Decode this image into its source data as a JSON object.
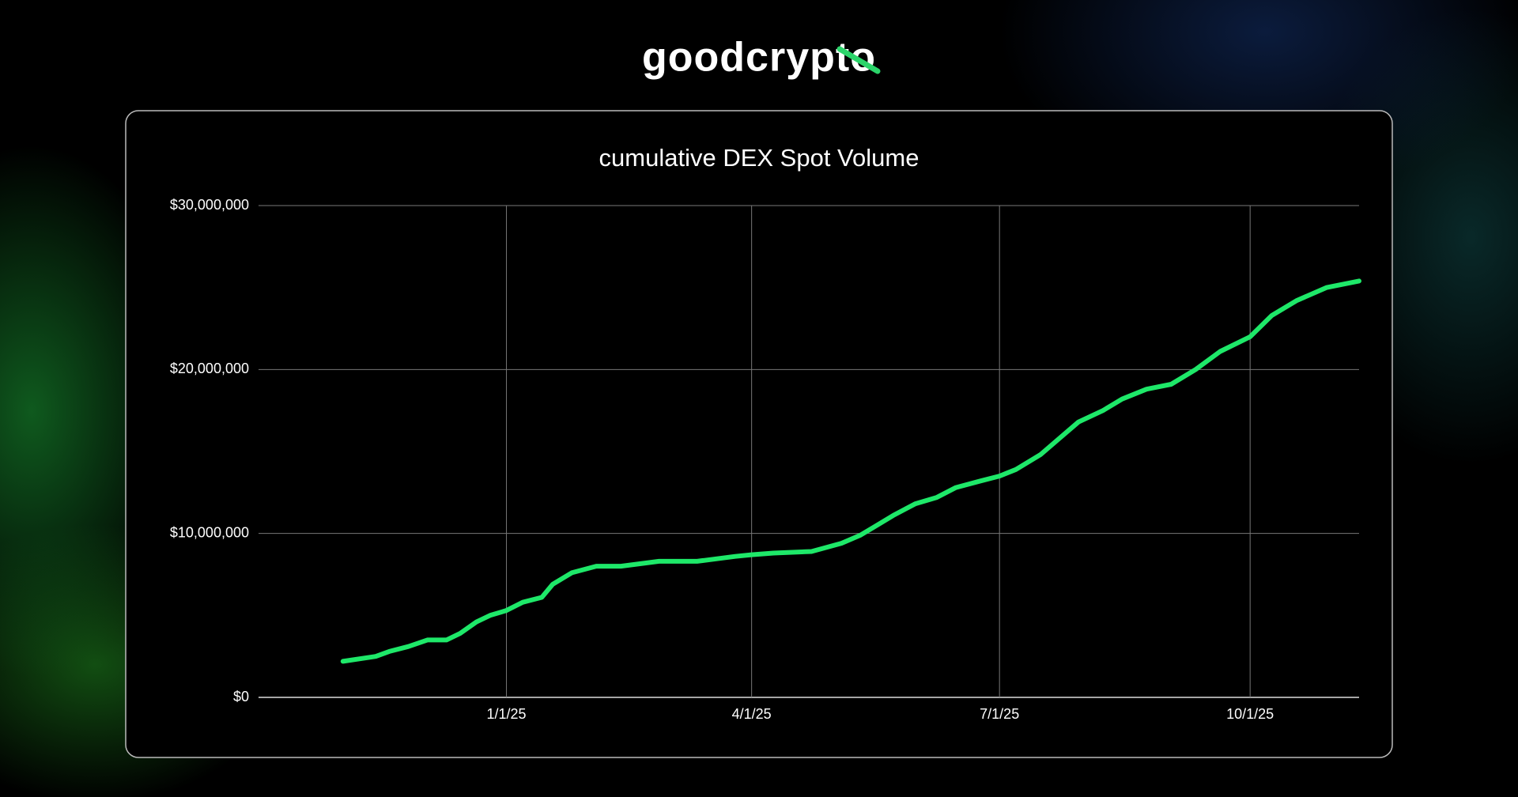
{
  "brand": "goodcrypto",
  "chart_data": {
    "type": "line",
    "title": "cumulative DEX Spot Volume",
    "x": [
      "2024-11-02",
      "2024-11-14",
      "2024-11-19",
      "2024-11-26",
      "2024-12-03",
      "2024-12-10",
      "2024-12-15",
      "2024-12-21",
      "2024-12-26",
      "2025-01-01",
      "2025-01-07",
      "2025-01-14",
      "2025-01-18",
      "2025-01-25",
      "2025-02-03",
      "2025-02-12",
      "2025-02-26",
      "2025-03-12",
      "2025-03-26",
      "2025-04-01",
      "2025-04-09",
      "2025-04-23",
      "2025-05-04",
      "2025-05-11",
      "2025-05-16",
      "2025-05-23",
      "2025-05-31",
      "2025-06-08",
      "2025-06-15",
      "2025-06-24",
      "2025-07-01",
      "2025-07-07",
      "2025-07-16",
      "2025-07-23",
      "2025-07-30",
      "2025-08-08",
      "2025-08-15",
      "2025-08-24",
      "2025-09-02",
      "2025-09-11",
      "2025-09-20",
      "2025-10-01",
      "2025-10-09",
      "2025-10-18",
      "2025-10-29",
      "2025-11-10"
    ],
    "series": [
      {
        "name": "cumulative DEX Spot Volume",
        "color": "#1ee869",
        "values": [
          2200000,
          2500000,
          2800000,
          3100000,
          3500000,
          3500000,
          3900000,
          4600000,
          5000000,
          5300000,
          5800000,
          6100000,
          6900000,
          7600000,
          8000000,
          8000000,
          8300000,
          8300000,
          8600000,
          8700000,
          8800000,
          8900000,
          9400000,
          9900000,
          10400000,
          11100000,
          11800000,
          12200000,
          12800000,
          13200000,
          13500000,
          13900000,
          14800000,
          15800000,
          16800000,
          17500000,
          18200000,
          18800000,
          19100000,
          20000000,
          21100000,
          22000000,
          23300000,
          24200000,
          25000000,
          25400000
        ]
      }
    ],
    "xlim": [
      "2024-10-02",
      "2025-11-10"
    ],
    "xticks": [
      {
        "value": "2025-01-01",
        "label": "1/1/25"
      },
      {
        "value": "2025-04-01",
        "label": "4/1/25"
      },
      {
        "value": "2025-07-01",
        "label": "7/1/25"
      },
      {
        "value": "2025-10-01",
        "label": "10/1/25"
      }
    ],
    "ylim": [
      0,
      30000000
    ],
    "yticks": [
      {
        "value": 0,
        "label": "$0"
      },
      {
        "value": 10000000,
        "label": "$10,000,000"
      },
      {
        "value": 20000000,
        "label": "$20,000,000"
      },
      {
        "value": 30000000,
        "label": "$30,000,000"
      }
    ],
    "grid": true
  }
}
